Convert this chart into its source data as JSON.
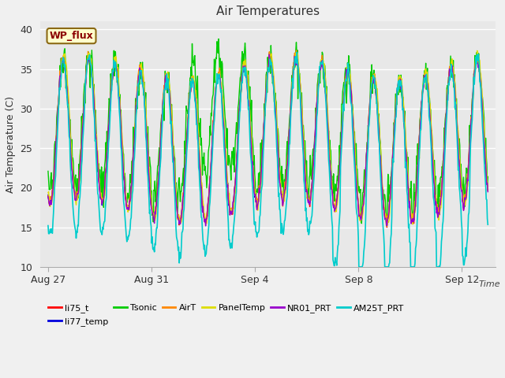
{
  "title": "Air Temperatures",
  "xlabel": "Time",
  "ylabel": "Air Temperature (C)",
  "ylim": [
    10,
    41
  ],
  "yticks": [
    10,
    15,
    20,
    25,
    30,
    35,
    40
  ],
  "fig_bg_color": "#f0f0f0",
  "plot_bg_color": "#e8e8e8",
  "annotation_text": "WP_flux",
  "annotation_box_color": "#ffffcc",
  "annotation_text_color": "#8b0000",
  "annotation_border_color": "#8b6914",
  "series": [
    {
      "label": "li75_t",
      "color": "#ff0000",
      "lw": 1.0
    },
    {
      "label": "li77_temp",
      "color": "#0000dd",
      "lw": 1.0
    },
    {
      "label": "Tsonic",
      "color": "#00cc00",
      "lw": 1.0
    },
    {
      "label": "AirT",
      "color": "#ff8800",
      "lw": 1.0
    },
    {
      "label": "PanelTemp",
      "color": "#dddd00",
      "lw": 1.0
    },
    {
      "label": "NR01_PRT",
      "color": "#9900cc",
      "lw": 1.0
    },
    {
      "label": "AM25T_PRT",
      "color": "#00cccc",
      "lw": 1.2
    }
  ],
  "xtick_labels": [
    "Aug 27",
    "Aug 31",
    "Sep 4",
    "Sep 8",
    "Sep 12"
  ],
  "xtick_positions": [
    0,
    4,
    8,
    12,
    16
  ]
}
